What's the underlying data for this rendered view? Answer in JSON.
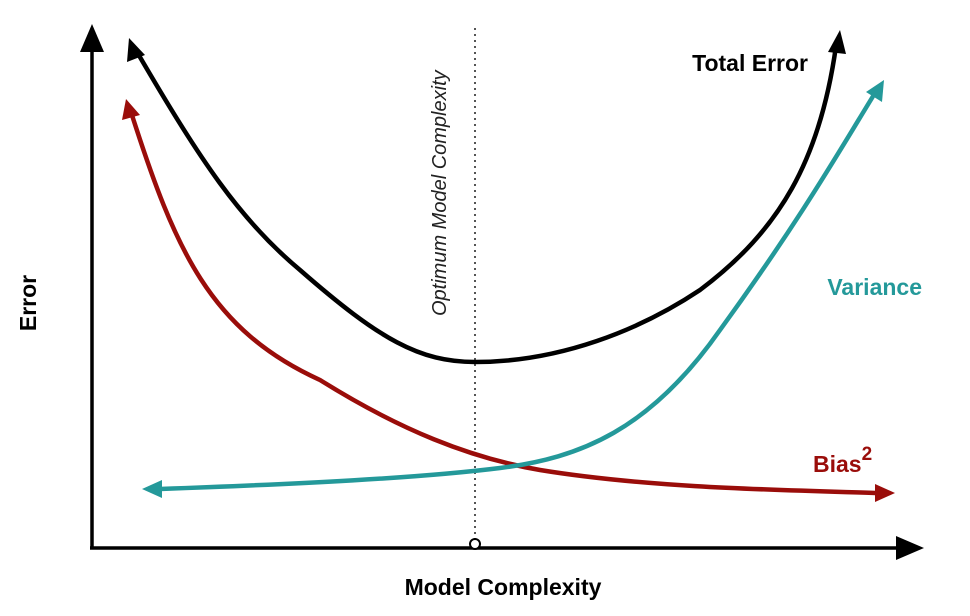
{
  "labels": {
    "y_axis": "Error",
    "x_axis": "Model Complexity",
    "optimum": "Optimum Model Complexity",
    "total_error": "Total Error",
    "variance": "Variance",
    "bias": "Bias",
    "bias_superscript": "2"
  },
  "colors": {
    "axis": "#000000",
    "total_error": "#000000",
    "variance": "#24999a",
    "bias": "#9a0d0a",
    "optimum_line": "#666666"
  }
}
